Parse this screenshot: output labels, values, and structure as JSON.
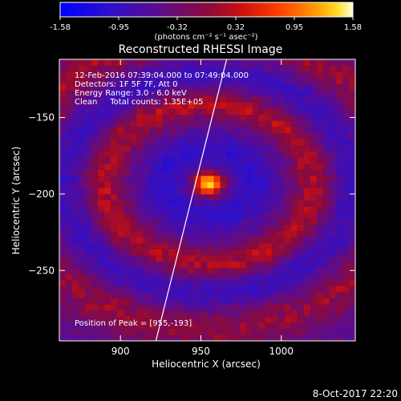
{
  "colorbar": {
    "ticks": [
      "-1.58",
      "-0.95",
      "-0.32",
      "0.32",
      "0.95",
      "1.58"
    ],
    "units": "(photons cm⁻² s⁻¹ asec⁻²)",
    "range": [
      -1.58,
      1.58
    ]
  },
  "header": {
    "title": "Reconstructed RHESSI Image"
  },
  "info": {
    "line1": "12-Feb-2016 07:39:04.000 to 07:49:04.000",
    "line2": "Detectors: 1F 5F 7F, Att 0",
    "line3": "Energy Range: 3.0 - 6.0 keV",
    "line4": "Clean     Total counts: 1.35E+05",
    "peak": "Position of Peak = [955,-193]"
  },
  "footer": {
    "timestamp": "8-Oct-2017 22:20"
  },
  "chart_data": {
    "type": "heatmap",
    "title": "Reconstructed RHESSI Image",
    "xlabel": "Heliocentric X (arcsec)",
    "ylabel": "Heliocentric Y (arcsec)",
    "xlim": [
      862,
      1046
    ],
    "ylim": [
      -296,
      -112
    ],
    "xticks": [
      900,
      950,
      1000
    ],
    "yticks": [
      -150,
      -200,
      -250
    ],
    "xtick_labels": [
      "900",
      "950",
      "1000"
    ],
    "ytick_labels": [
      "−150",
      "−200",
      "−250"
    ],
    "peak": {
      "x": 955,
      "y": -193,
      "value": 1.58
    },
    "value_range": [
      -1.58,
      1.58
    ],
    "colormap": "rainbow-blue-purple-red-yellow-white",
    "limb_line": {
      "x": [
        922,
        966
      ],
      "y": [
        -296,
        -112
      ]
    }
  }
}
